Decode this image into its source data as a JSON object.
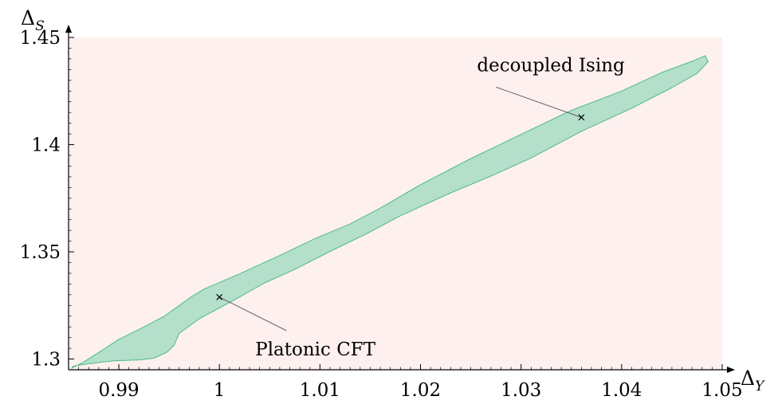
{
  "chart_data": {
    "type": "area",
    "title": "",
    "xlabel": {
      "main": "Δ",
      "sub": "Y"
    },
    "ylabel": {
      "main": "Δ",
      "sub": "S"
    },
    "xlim": [
      0.985,
      1.05
    ],
    "ylim": [
      1.295,
      1.45
    ],
    "xticks": [
      {
        "value": 0.99,
        "label": "0.99"
      },
      {
        "value": 1.0,
        "label": "1"
      },
      {
        "value": 1.01,
        "label": "1.01"
      },
      {
        "value": 1.02,
        "label": "1.02"
      },
      {
        "value": 1.03,
        "label": "1.03"
      },
      {
        "value": 1.04,
        "label": "1.04"
      },
      {
        "value": 1.05,
        "label": "1.05"
      }
    ],
    "yticks": [
      {
        "value": 1.3,
        "label": "1.3"
      },
      {
        "value": 1.35,
        "label": "1.35"
      },
      {
        "value": 1.4,
        "label": "1.4"
      },
      {
        "value": 1.45,
        "label": "1.45"
      }
    ],
    "grid": false,
    "background_color": "#fdf0ee",
    "region_fill": "#b3dfcb",
    "region_stroke": "#4fba8b",
    "allowed_region": [
      [
        0.9853,
        1.2957
      ],
      [
        0.9865,
        1.2986
      ],
      [
        0.9885,
        1.3046
      ],
      [
        0.99,
        1.3092
      ],
      [
        0.992,
        1.3138
      ],
      [
        0.9945,
        1.3199
      ],
      [
        0.9972,
        1.329
      ],
      [
        0.9985,
        1.3327
      ],
      [
        1.002,
        1.3397
      ],
      [
        1.006,
        1.3483
      ],
      [
        1.0095,
        1.3562
      ],
      [
        1.013,
        1.363
      ],
      [
        1.016,
        1.3704
      ],
      [
        1.02,
        1.3813
      ],
      [
        1.025,
        1.3935
      ],
      [
        1.03,
        1.4048
      ],
      [
        1.035,
        1.416
      ],
      [
        1.04,
        1.425
      ],
      [
        1.044,
        1.4337
      ],
      [
        1.047,
        1.4389
      ],
      [
        1.0483,
        1.4415
      ],
      [
        1.0486,
        1.4387
      ],
      [
        1.0475,
        1.4332
      ],
      [
        1.045,
        1.4266
      ],
      [
        1.041,
        1.417
      ],
      [
        1.036,
        1.4062
      ],
      [
        1.031,
        1.3938
      ],
      [
        1.027,
        1.3853
      ],
      [
        1.023,
        1.3775
      ],
      [
        1.018,
        1.3668
      ],
      [
        1.0145,
        1.3581
      ],
      [
        1.011,
        1.3502
      ],
      [
        1.0075,
        1.3418
      ],
      [
        1.0045,
        1.3355
      ],
      [
        1.0015,
        1.3276
      ],
      [
        0.998,
        1.3188
      ],
      [
        0.996,
        1.312
      ],
      [
        0.9955,
        1.3065
      ],
      [
        0.9948,
        1.3032
      ],
      [
        0.9935,
        1.3004
      ],
      [
        0.992,
        1.2996
      ],
      [
        0.9895,
        1.2992
      ],
      [
        0.987,
        1.2978
      ],
      [
        0.9855,
        1.2968
      ]
    ],
    "annotations": [
      {
        "label": "decoupled Ising",
        "x": 1.036,
        "y": 1.4127
      },
      {
        "label": "Platonic CFT",
        "x": 1.0,
        "y": 1.3289
      }
    ]
  }
}
